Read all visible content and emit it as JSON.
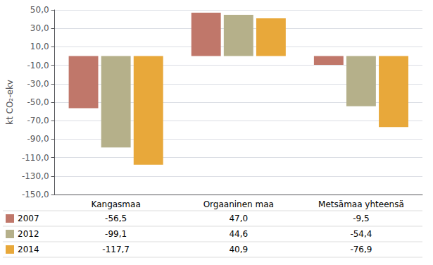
{
  "chart_data": {
    "type": "bar",
    "ylabel": "kt CO₂-ekv",
    "categories": [
      "Kangasmaa",
      "Orgaaninen maa",
      "Metsämaa yhteensä"
    ],
    "series": [
      {
        "name": "2007",
        "color": "#c0776a",
        "values": [
          -56.5,
          47.0,
          -9.5
        ],
        "value_labels": [
          "-56,5",
          "47,0",
          "-9,5"
        ]
      },
      {
        "name": "2012",
        "color": "#b5b08a",
        "values": [
          -99.1,
          44.6,
          -54.4
        ],
        "value_labels": [
          "-99,1",
          "44,6",
          "-54,4"
        ]
      },
      {
        "name": "2014",
        "color": "#e8a83a",
        "values": [
          -117.7,
          40.9,
          -76.9
        ],
        "value_labels": [
          "-117,7",
          "40,9",
          "-76,9"
        ]
      }
    ],
    "ylim": [
      -150,
      50
    ],
    "yticks": [
      {
        "value": 50,
        "label": "50,0"
      },
      {
        "value": 30,
        "label": "30,0"
      },
      {
        "value": 10,
        "label": "10,0"
      },
      {
        "value": -10,
        "label": "-10,0"
      },
      {
        "value": -30,
        "label": "-30,0"
      },
      {
        "value": -50,
        "label": "-50,0"
      },
      {
        "value": -70,
        "label": "-70,0"
      },
      {
        "value": -90,
        "label": "-90,0"
      },
      {
        "value": -110,
        "label": "-110,0"
      },
      {
        "value": -130,
        "label": "-130,0"
      },
      {
        "value": -150,
        "label": "-150,0"
      }
    ],
    "grid": true,
    "data_labels": true
  }
}
